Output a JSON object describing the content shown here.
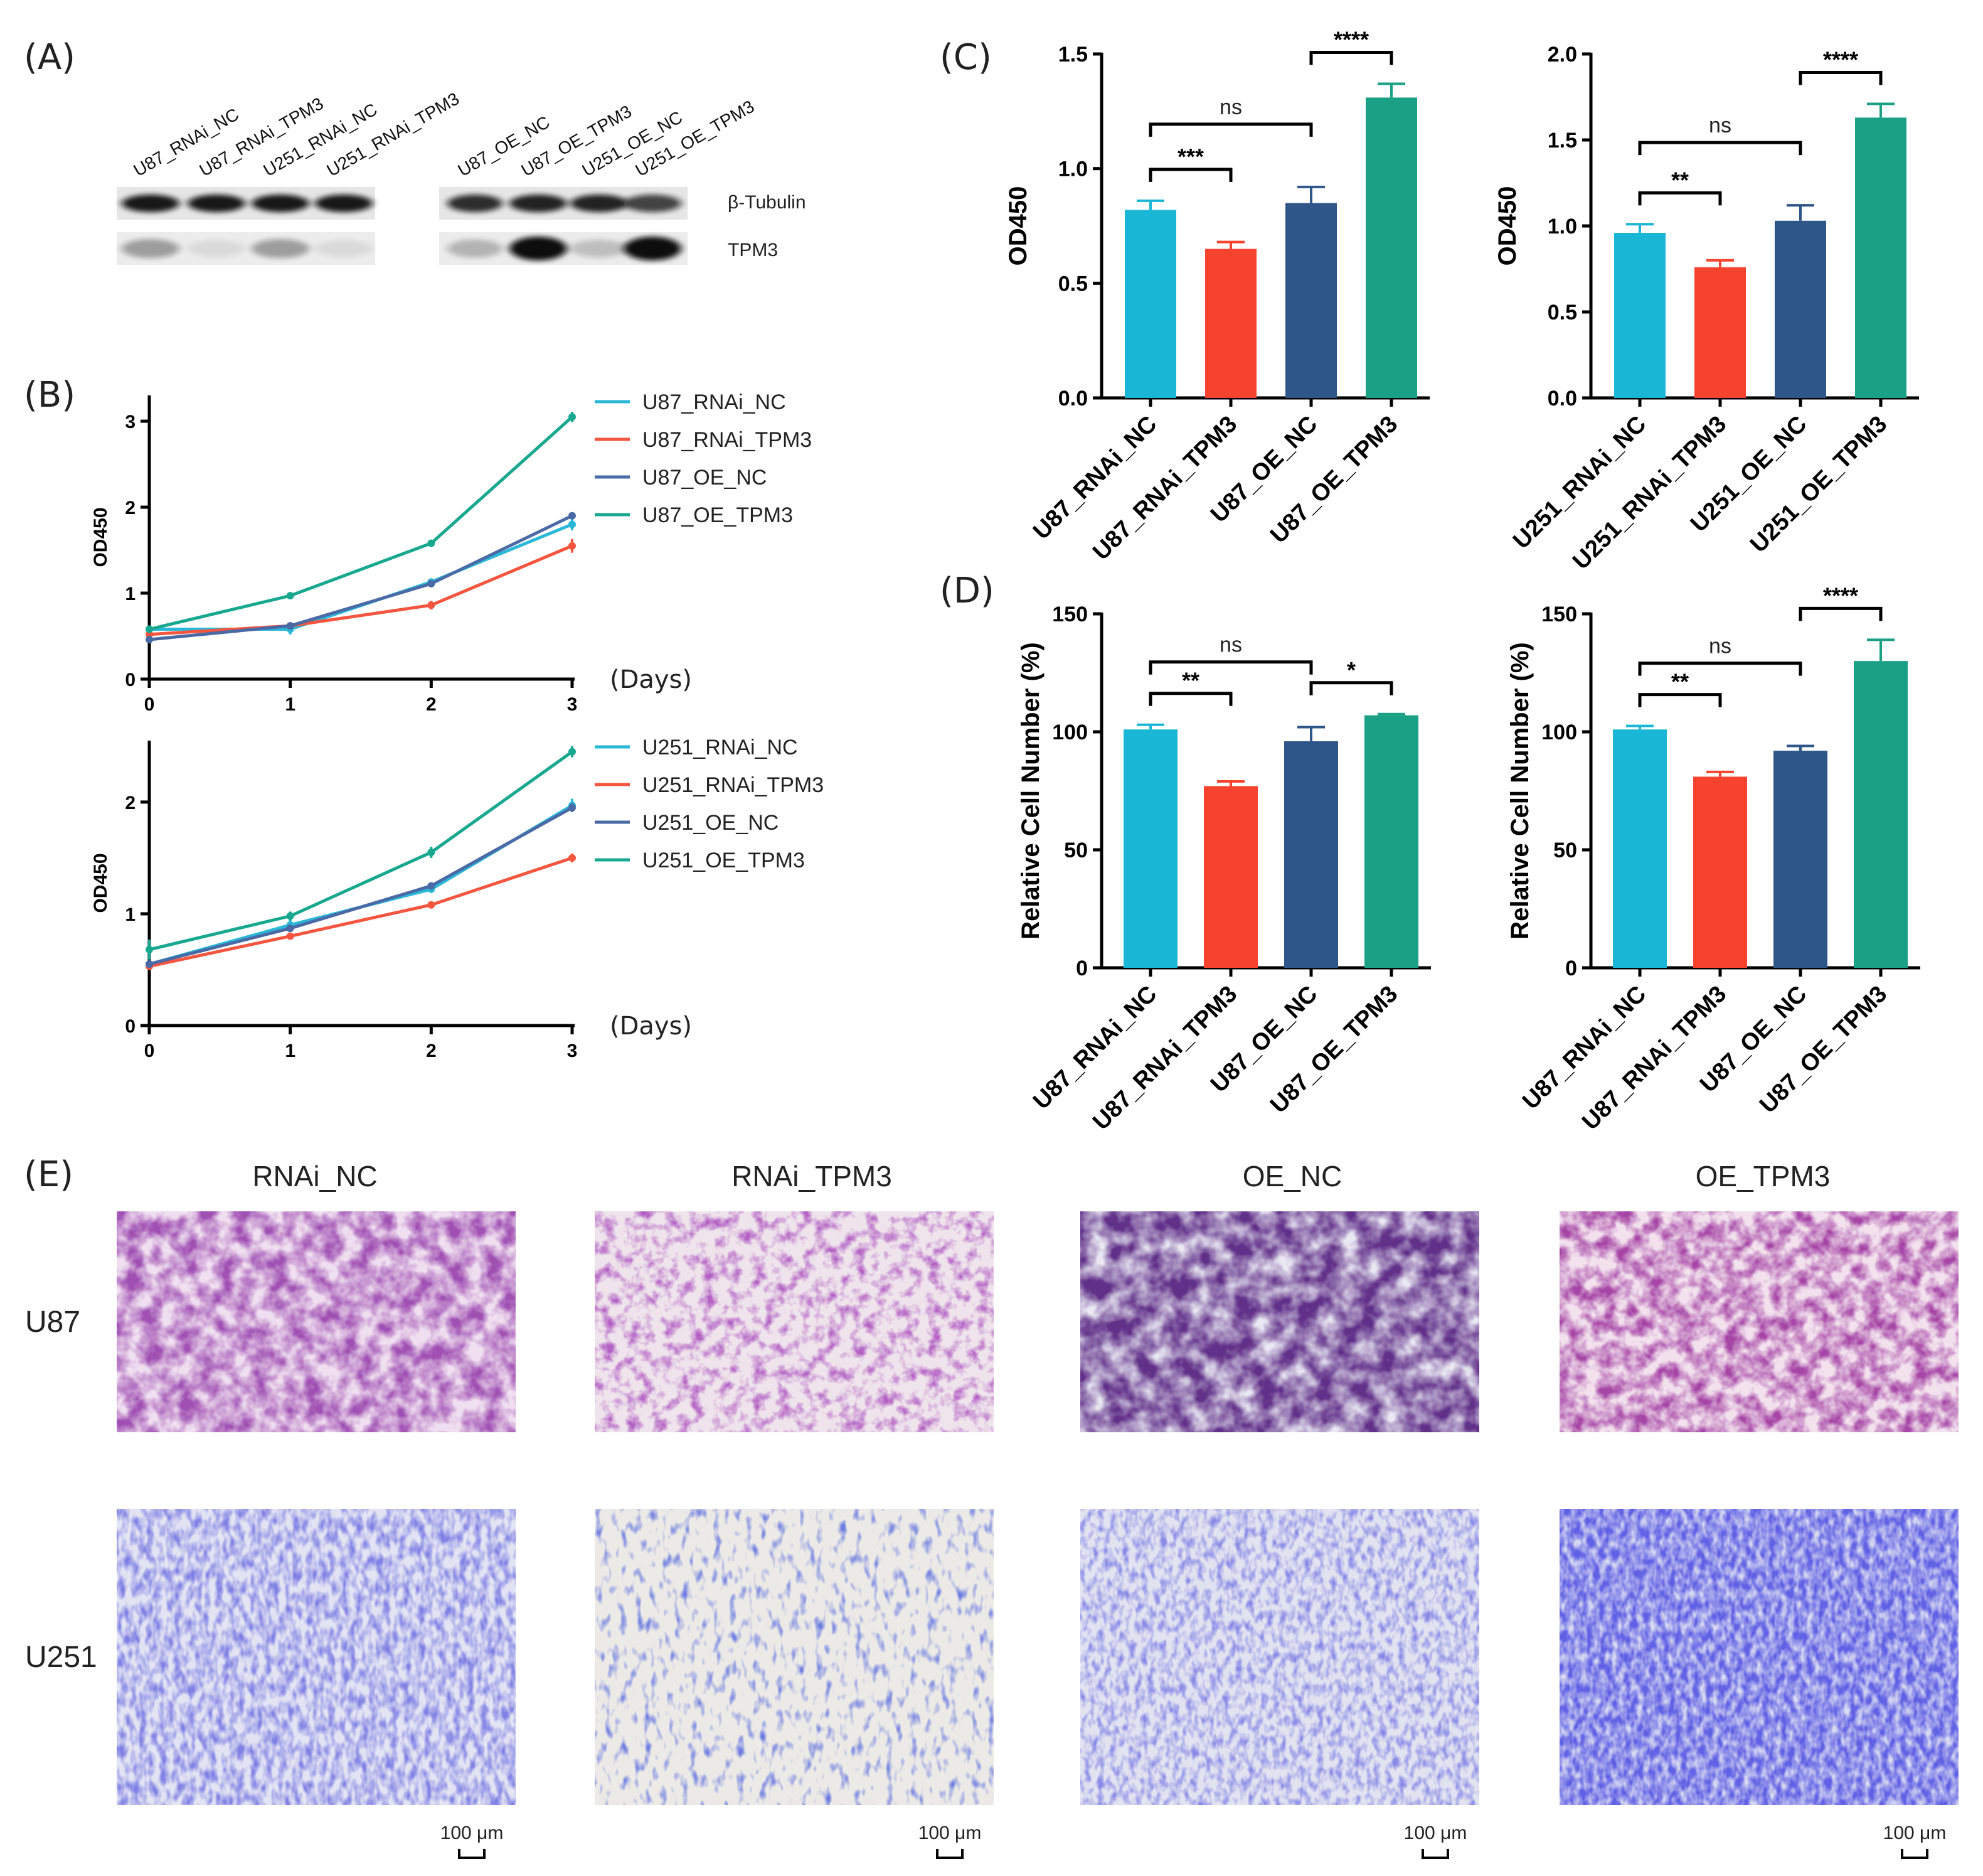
{
  "panels": {
    "A": "(A)",
    "B": "(B)",
    "C": "(C)",
    "D": "(D)",
    "E": "(E)"
  },
  "western_blot": {
    "lane_labels": [
      "U87_RNAi_NC",
      "U87_RNAi_TPM3",
      "U251_RNAi_NC",
      "U251_RNAi_TPM3",
      "U87_OE_NC",
      "U87_OE_TPM3",
      "U251_OE_NC",
      "U251_OE_TPM3"
    ],
    "markers": [
      "β-Tubulin",
      "TPM3"
    ],
    "tubulin_intensity": [
      0.95,
      0.95,
      0.95,
      0.95,
      0.85,
      0.9,
      0.9,
      0.75
    ],
    "tpm3_intensity": [
      0.35,
      0.08,
      0.35,
      0.08,
      0.25,
      1.0,
      0.2,
      1.0
    ]
  },
  "colors": {
    "rnai_nc": "#1ab6d6",
    "rnai_tpm3": "#f5432e",
    "oe_nc": "#2e5688",
    "oe_tpm3": "#1aa085",
    "line_rnai_nc": "#2ab8d8",
    "line_rnai_tpm3": "#f4553f",
    "line_oe_nc": "#4a6aa6",
    "line_oe_tpm3": "#18a890"
  },
  "chart_data": [
    {
      "id": "B_U87",
      "type": "line",
      "x": [
        0,
        1,
        2,
        3
      ],
      "xlabel": "(Days)",
      "ylabel": "OD450",
      "ylim": [
        0,
        3.3
      ],
      "yticks": [
        0,
        1,
        2,
        3
      ],
      "series": [
        {
          "name": "U87_RNAi_NC",
          "values": [
            0.58,
            0.58,
            1.13,
            1.8
          ],
          "err": [
            0.03,
            0.06,
            0.03,
            0.07
          ]
        },
        {
          "name": "U87_RNAi_TPM3",
          "values": [
            0.52,
            0.62,
            0.86,
            1.55
          ],
          "err": [
            0.03,
            0.03,
            0.05,
            0.08
          ]
        },
        {
          "name": "U87_OE_NC",
          "values": [
            0.46,
            0.62,
            1.11,
            1.9
          ],
          "err": [
            0.03,
            0.03,
            0.03,
            0.04
          ]
        },
        {
          "name": "U87_OE_TPM3",
          "values": [
            0.58,
            0.97,
            1.58,
            3.05
          ],
          "err": [
            0.03,
            0.03,
            0.03,
            0.06
          ]
        }
      ]
    },
    {
      "id": "B_U251",
      "type": "line",
      "x": [
        0,
        1,
        2,
        3
      ],
      "xlabel": "(Days)",
      "ylabel": "OD450",
      "ylim": [
        0,
        2.55
      ],
      "yticks": [
        0,
        1,
        2
      ],
      "series": [
        {
          "name": "U251_RNAi_NC",
          "values": [
            0.55,
            0.9,
            1.22,
            1.97
          ],
          "err": [
            0.03,
            0.06,
            0.03,
            0.06
          ]
        },
        {
          "name": "U251_RNAi_TPM3",
          "values": [
            0.53,
            0.8,
            1.08,
            1.5
          ],
          "err": [
            0.03,
            0.03,
            0.03,
            0.04
          ]
        },
        {
          "name": "U251_OE_NC",
          "values": [
            0.55,
            0.87,
            1.25,
            1.95
          ],
          "err": [
            0.03,
            0.03,
            0.03,
            0.04
          ]
        },
        {
          "name": "U251_OE_TPM3",
          "values": [
            0.68,
            0.98,
            1.55,
            2.45
          ],
          "err": [
            0.09,
            0.04,
            0.05,
            0.05
          ]
        }
      ]
    },
    {
      "id": "C_U87",
      "type": "bar",
      "categories": [
        "U87_RNAi_NC",
        "U87_RNAi_TPM3",
        "U87_OE_NC",
        "U87_OE_TPM3"
      ],
      "values": [
        0.82,
        0.65,
        0.85,
        1.31
      ],
      "err": [
        0.04,
        0.03,
        0.07,
        0.06
      ],
      "ylabel": "OD450",
      "ylim": [
        0,
        1.5
      ],
      "yticks": [
        "0.0",
        "0.5",
        "1.0",
        "1.5"
      ],
      "comparisons": [
        {
          "a": 0,
          "b": 1,
          "label": "***"
        },
        {
          "a": 0,
          "b": 2,
          "label": "ns"
        },
        {
          "a": 2,
          "b": 3,
          "label": "****"
        }
      ]
    },
    {
      "id": "C_U251",
      "type": "bar",
      "categories": [
        "U251_RNAi_NC",
        "U251_RNAi_TPM3",
        "U251_OE_NC",
        "U251_OE_TPM3"
      ],
      "values": [
        0.96,
        0.76,
        1.03,
        1.63
      ],
      "err": [
        0.05,
        0.04,
        0.09,
        0.08
      ],
      "ylabel": "OD450",
      "ylim": [
        0,
        2.0
      ],
      "yticks": [
        "0.0",
        "0.5",
        "1.0",
        "1.5",
        "2.0"
      ],
      "comparisons": [
        {
          "a": 0,
          "b": 1,
          "label": "**"
        },
        {
          "a": 0,
          "b": 2,
          "label": "ns"
        },
        {
          "a": 2,
          "b": 3,
          "label": "****"
        }
      ]
    },
    {
      "id": "D_left",
      "type": "bar",
      "categories": [
        "U87_RNAi_NC",
        "U87_RNAi_TPM3",
        "U87_OE_NC",
        "U87_OE_TPM3"
      ],
      "values": [
        101,
        77,
        96,
        107
      ],
      "err": [
        2,
        2,
        6,
        0.5
      ],
      "ylabel": "Relative Cell Number (%)",
      "ylim": [
        0,
        150
      ],
      "yticks": [
        "0",
        "50",
        "100",
        "150"
      ],
      "comparisons": [
        {
          "a": 0,
          "b": 1,
          "label": "**"
        },
        {
          "a": 0,
          "b": 2,
          "label": "ns"
        },
        {
          "a": 2,
          "b": 3,
          "label": "*"
        }
      ]
    },
    {
      "id": "D_right",
      "type": "bar",
      "categories": [
        "U87_RNAi_NC",
        "U87_RNAi_TPM3",
        "U87_OE_NC",
        "U87_OE_TPM3"
      ],
      "values": [
        101,
        81,
        92,
        130
      ],
      "err": [
        1.5,
        2,
        2,
        9
      ],
      "ylabel": "Relative Cell Number (%)",
      "ylim": [
        0,
        150
      ],
      "yticks": [
        "0",
        "50",
        "100",
        "150"
      ],
      "comparisons": [
        {
          "a": 0,
          "b": 1,
          "label": "**"
        },
        {
          "a": 0,
          "b": 2,
          "label": "ns"
        },
        {
          "a": 2,
          "b": 3,
          "label": "****"
        }
      ]
    }
  ],
  "transwell": {
    "columns": [
      "RNAi_NC",
      "RNAi_TPM3",
      "OE_NC",
      "OE_TPM3"
    ],
    "rows": [
      "U87",
      "U251"
    ],
    "scale_bar": "100 μm",
    "u87_density": [
      0.6,
      0.4,
      0.75,
      0.55
    ],
    "u251_density": [
      0.55,
      0.3,
      0.5,
      0.7
    ]
  }
}
